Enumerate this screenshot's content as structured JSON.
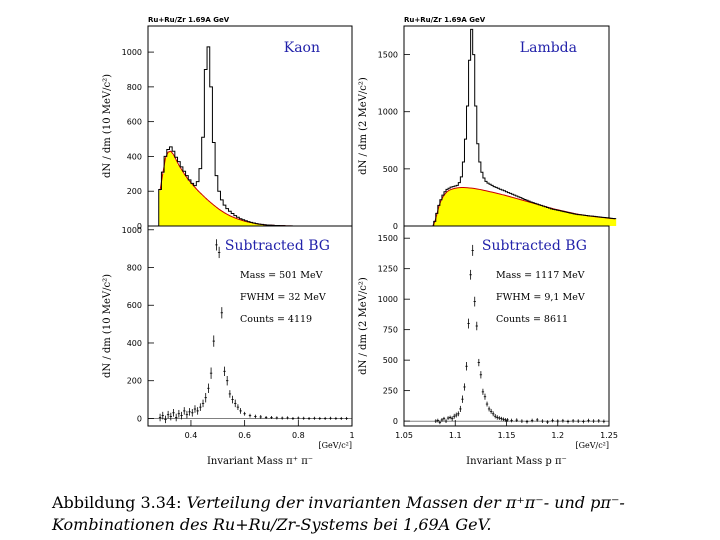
{
  "chart_data": [
    {
      "id": "kaon-top",
      "type": "histogram",
      "run_label": "Ru+Ru/Zr 1.69A GeV",
      "title": "Kaon",
      "ylabel": "dN / dm (10 MeV/c²)",
      "xlim": [
        0.24,
        1.0
      ],
      "ylim": [
        0,
        1150
      ],
      "yticks": [
        0,
        200,
        400,
        600,
        800,
        1000
      ],
      "bin_width": 0.01,
      "x_start": 0.28,
      "signal_hist": [
        210,
        310,
        400,
        440,
        455,
        430,
        395,
        370,
        340,
        315,
        290,
        265,
        245,
        232,
        255,
        330,
        510,
        900,
        1030,
        800,
        480,
        290,
        200,
        150,
        120,
        100,
        85,
        72,
        60,
        50,
        42,
        36,
        30,
        25,
        21,
        17,
        14,
        11,
        9,
        7,
        6,
        5,
        4,
        3,
        3,
        2,
        2,
        1,
        1,
        1
      ],
      "background_hist": [
        205,
        300,
        390,
        425,
        430,
        410,
        380,
        350,
        325,
        300,
        278,
        258,
        240,
        222,
        205,
        190,
        175,
        160,
        146,
        133,
        120,
        108,
        96,
        86,
        76,
        67,
        59,
        52,
        46,
        40,
        35,
        30,
        26,
        22,
        19,
        16,
        13,
        11,
        9,
        7,
        6,
        5,
        4,
        3,
        3,
        2,
        2,
        1,
        1,
        1
      ],
      "background_color": "#ffff00",
      "background_curve_color": "#cc0000"
    },
    {
      "id": "lambda-top",
      "type": "histogram",
      "run_label": "Ru+Ru/Zr 1.69A GeV",
      "title": "Lambda",
      "ylabel": "dN / dm (2 MeV/c²)",
      "xlim": [
        1.05,
        1.25
      ],
      "ylim": [
        0,
        1750
      ],
      "yticks": [
        0,
        500,
        1000,
        1500
      ],
      "bin_width": 0.002,
      "x_start": 1.077,
      "signal_hist": [
        0,
        40,
        110,
        180,
        230,
        270,
        300,
        320,
        330,
        340,
        345,
        350,
        355,
        380,
        430,
        560,
        760,
        1050,
        1450,
        1720,
        1500,
        1050,
        720,
        560,
        470,
        420,
        390,
        375,
        365,
        355,
        345,
        338,
        330,
        322,
        315,
        308,
        300,
        292,
        285,
        278,
        270,
        262,
        255,
        248,
        240,
        232,
        225,
        218,
        210,
        204,
        198,
        192,
        186,
        180,
        174,
        168,
        162,
        156,
        150,
        146,
        142,
        138,
        134,
        130,
        126,
        122,
        118,
        114,
        110,
        106,
        103,
        100,
        98,
        96,
        94,
        92,
        90,
        88,
        86,
        84,
        82,
        80,
        78,
        76,
        74,
        72,
        70,
        68,
        66,
        64
      ],
      "background_hist": [
        0,
        35,
        100,
        170,
        220,
        255,
        280,
        300,
        312,
        320,
        326,
        330,
        334,
        336,
        337,
        337,
        336,
        335,
        333,
        331,
        329,
        326,
        323,
        320,
        316,
        312,
        308,
        304,
        300,
        296,
        292,
        288,
        283,
        279,
        274,
        270,
        265,
        260,
        255,
        250,
        245,
        240,
        235,
        230,
        225,
        220,
        215,
        210,
        205,
        200,
        195,
        190,
        185,
        180,
        175,
        170,
        165,
        160,
        155,
        150,
        146,
        142,
        138,
        134,
        130,
        126,
        122,
        118,
        114,
        110,
        106,
        103,
        100,
        97,
        94,
        91,
        88,
        86,
        84,
        82,
        80,
        78,
        76,
        74,
        72,
        70,
        68,
        66,
        64,
        62
      ],
      "background_color": "#ffff00",
      "background_curve_color": "#cc0000"
    },
    {
      "id": "kaon-bottom",
      "type": "scatter",
      "title": "Subtracted BG",
      "ylabel": "dN / dm (10 MeV/c²)",
      "xlabel": "Invariant Mass  π⁺ π⁻",
      "x_unit": "[GeV/c²]",
      "xlim": [
        0.24,
        1.0
      ],
      "ylim": [
        -40,
        1020
      ],
      "yticks": [
        0,
        200,
        400,
        600,
        800,
        1000
      ],
      "xticks": [
        0.4,
        0.6,
        0.8,
        1.0
      ],
      "xtick_labels": [
        "0.4",
        "0.6",
        "0.8",
        "1"
      ],
      "info": {
        "mass": "Mass = 501 MeV",
        "fwhm": "FWHM = 32 MeV",
        "counts": "Counts = 4119"
      },
      "points_x": [
        0.285,
        0.295,
        0.305,
        0.315,
        0.325,
        0.335,
        0.345,
        0.355,
        0.365,
        0.375,
        0.385,
        0.395,
        0.405,
        0.415,
        0.425,
        0.435,
        0.445,
        0.455,
        0.465,
        0.475,
        0.485,
        0.495,
        0.505,
        0.515,
        0.525,
        0.535,
        0.545,
        0.555,
        0.565,
        0.575,
        0.585,
        0.6,
        0.62,
        0.64,
        0.66,
        0.68,
        0.7,
        0.72,
        0.74,
        0.76,
        0.78,
        0.8,
        0.82,
        0.84,
        0.86,
        0.88,
        0.9,
        0.92,
        0.94,
        0.96,
        0.98
      ],
      "points_y": [
        5,
        15,
        -5,
        20,
        10,
        30,
        5,
        25,
        15,
        40,
        20,
        35,
        30,
        50,
        40,
        60,
        80,
        110,
        160,
        240,
        410,
        920,
        880,
        560,
        250,
        200,
        130,
        100,
        80,
        60,
        40,
        25,
        15,
        10,
        8,
        5,
        5,
        3,
        2,
        3,
        0,
        2,
        1,
        0,
        1,
        0,
        0,
        1,
        0,
        0,
        0
      ],
      "errors_y": [
        20,
        20,
        20,
        20,
        20,
        20,
        20,
        20,
        20,
        20,
        20,
        20,
        20,
        20,
        20,
        20,
        20,
        25,
        25,
        30,
        30,
        30,
        30,
        30,
        25,
        25,
        20,
        20,
        20,
        15,
        15,
        10,
        10,
        10,
        10,
        8,
        8,
        8,
        8,
        8,
        8,
        8,
        8,
        8,
        8,
        8,
        8,
        8,
        8,
        8,
        8
      ]
    },
    {
      "id": "lambda-bottom",
      "type": "scatter",
      "title": "Subtracted BG",
      "ylabel": "dN / dm (2 MeV/c²)",
      "xlabel": "Invariant Mass  p π⁻",
      "x_unit": "[GeV/c²]",
      "xlim": [
        1.05,
        1.25
      ],
      "ylim": [
        -40,
        1600
      ],
      "yticks": [
        0,
        250,
        500,
        750,
        1000,
        1250,
        1500
      ],
      "xticks": [
        1.05,
        1.1,
        1.15,
        1.2,
        1.25
      ],
      "xtick_labels": [
        "1.05",
        "1.1",
        "1.15",
        "1.2",
        "1.25"
      ],
      "info": {
        "mass": "Mass = 1117 MeV",
        "fwhm": "FWHM = 9,1 MeV",
        "counts": "Counts = 8611"
      },
      "points_x": [
        1.081,
        1.083,
        1.085,
        1.087,
        1.089,
        1.091,
        1.093,
        1.095,
        1.097,
        1.099,
        1.101,
        1.103,
        1.105,
        1.107,
        1.109,
        1.111,
        1.113,
        1.115,
        1.117,
        1.119,
        1.121,
        1.123,
        1.125,
        1.127,
        1.129,
        1.131,
        1.133,
        1.135,
        1.137,
        1.139,
        1.141,
        1.143,
        1.145,
        1.147,
        1.149,
        1.151,
        1.155,
        1.16,
        1.165,
        1.17,
        1.175,
        1.18,
        1.185,
        1.19,
        1.195,
        1.2,
        1.205,
        1.21,
        1.215,
        1.22,
        1.225,
        1.23,
        1.235,
        1.24,
        1.245
      ],
      "points_y": [
        0,
        5,
        -10,
        10,
        20,
        0,
        25,
        30,
        20,
        40,
        50,
        60,
        100,
        180,
        280,
        450,
        800,
        1200,
        1400,
        980,
        780,
        480,
        380,
        240,
        200,
        140,
        100,
        80,
        60,
        40,
        30,
        25,
        20,
        15,
        10,
        10,
        5,
        8,
        0,
        -5,
        5,
        10,
        0,
        -8,
        5,
        0,
        3,
        -4,
        2,
        0,
        -3,
        4,
        0,
        2,
        -2
      ],
      "errors_y": [
        15,
        15,
        15,
        15,
        15,
        15,
        15,
        15,
        20,
        20,
        20,
        20,
        25,
        30,
        30,
        35,
        40,
        40,
        45,
        40,
        35,
        30,
        30,
        25,
        25,
        20,
        20,
        20,
        20,
        18,
        18,
        15,
        15,
        15,
        15,
        15,
        15,
        15,
        15,
        15,
        15,
        15,
        15,
        15,
        15,
        15,
        15,
        15,
        15,
        15,
        15,
        15,
        15,
        15,
        15
      ]
    }
  ],
  "caption": {
    "label": "Abbildung 3.34:",
    "text": "Verteilung der invarianten Massen der π⁺π⁻- und pπ⁻-Kombinationen des Ru+Ru/Zr-Systems bei 1,69A GeV."
  }
}
